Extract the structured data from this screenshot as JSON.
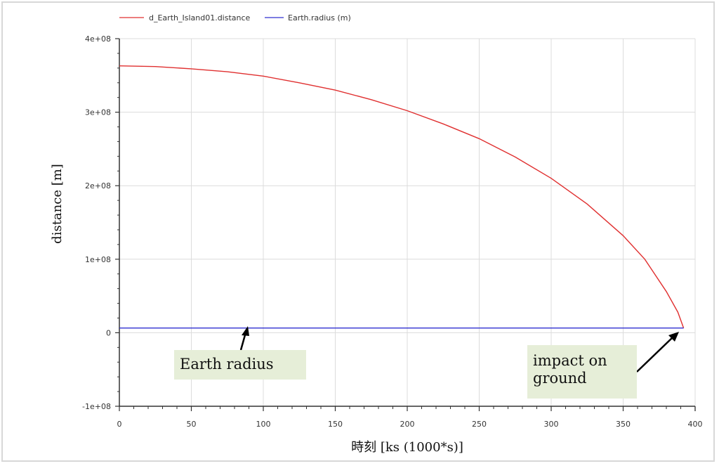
{
  "chart_data": {
    "type": "line",
    "xlabel": "時刻 [ks (1000*s)]",
    "ylabel": "distance [m]",
    "xlim": [
      0,
      400
    ],
    "ylim": [
      -100000000,
      400000000
    ],
    "xticks": [
      0,
      50,
      100,
      150,
      200,
      250,
      300,
      350,
      400
    ],
    "xtick_labels": [
      "0",
      "50",
      "100",
      "150",
      "200",
      "250",
      "300",
      "350",
      "400"
    ],
    "yticks": [
      -100000000,
      0,
      100000000,
      200000000,
      300000000,
      400000000
    ],
    "ytick_labels": [
      "-1e+08",
      "0",
      "1e+08",
      "2e+08",
      "3e+08",
      "4e+08"
    ],
    "grid": true,
    "legend_position": "top-center",
    "series": [
      {
        "name": "d_Earth_Island01.distance",
        "color": "#e03030",
        "x": [
          0,
          25,
          50,
          75,
          100,
          125,
          150,
          175,
          200,
          225,
          250,
          275,
          300,
          325,
          350,
          365,
          380,
          388,
          392
        ],
        "y": [
          363000000,
          362000000,
          359000000,
          355000000,
          349000000,
          340000000,
          330000000,
          317000000,
          302000000,
          284000000,
          264000000,
          239000000,
          210000000,
          175000000,
          132000000,
          100000000,
          56000000,
          28000000,
          6400000
        ]
      },
      {
        "name": "Earth.radius (m)",
        "color": "#3030d0",
        "x": [
          0,
          392
        ],
        "y": [
          6371000,
          6371000
        ]
      }
    ],
    "annotations": [
      {
        "text": "Earth radius",
        "points_to": "Earth.radius line",
        "x": 90,
        "y": 6371000
      },
      {
        "text": "impact on ground",
        "line1": "impact on",
        "line2": "ground",
        "x": 392,
        "y": 6400000
      }
    ]
  }
}
